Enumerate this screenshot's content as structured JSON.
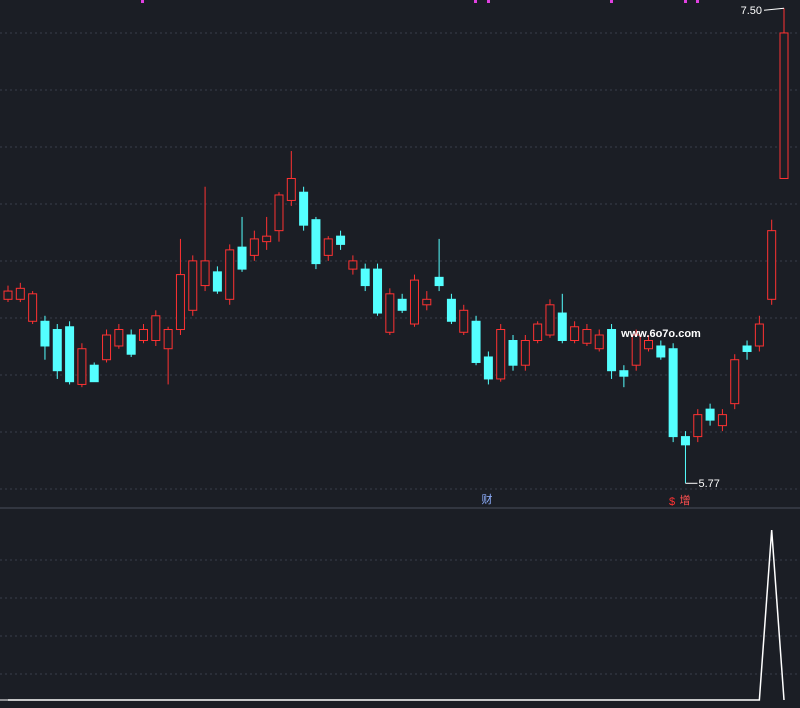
{
  "chart_data": {
    "type": "candlestick",
    "ylim": [
      5.68,
      7.53
    ],
    "open": [
      6.44,
      6.44,
      6.36,
      6.36,
      6.33,
      6.34,
      6.13,
      6.2,
      6.22,
      6.27,
      6.31,
      6.29,
      6.29,
      6.26,
      6.33,
      6.4,
      6.49,
      6.54,
      6.44,
      6.63,
      6.6,
      6.65,
      6.69,
      6.8,
      6.83,
      6.73,
      6.6,
      6.67,
      6.55,
      6.55,
      6.55,
      6.32,
      6.44,
      6.35,
      6.42,
      6.52,
      6.44,
      6.32,
      6.36,
      6.23,
      6.15,
      6.29,
      6.2,
      6.29,
      6.31,
      6.39,
      6.29,
      6.28,
      6.26,
      6.33,
      6.18,
      6.2,
      6.26,
      6.27,
      6.26,
      5.94,
      5.94,
      6.04,
      5.98,
      6.06,
      6.27,
      6.27,
      6.44,
      6.88
    ],
    "close": [
      6.47,
      6.48,
      6.46,
      6.27,
      6.18,
      6.14,
      6.26,
      6.14,
      6.31,
      6.33,
      6.24,
      6.33,
      6.38,
      6.33,
      6.53,
      6.58,
      6.58,
      6.47,
      6.62,
      6.55,
      6.66,
      6.67,
      6.82,
      6.88,
      6.71,
      6.57,
      6.66,
      6.64,
      6.58,
      6.49,
      6.39,
      6.46,
      6.4,
      6.51,
      6.44,
      6.49,
      6.36,
      6.4,
      6.21,
      6.15,
      6.33,
      6.2,
      6.29,
      6.35,
      6.42,
      6.29,
      6.34,
      6.33,
      6.31,
      6.18,
      6.16,
      6.31,
      6.29,
      6.23,
      5.94,
      5.91,
      6.02,
      6.0,
      6.02,
      6.22,
      6.25,
      6.35,
      6.69,
      7.41
    ],
    "high": [
      6.49,
      6.5,
      6.47,
      6.38,
      6.35,
      6.36,
      6.28,
      6.21,
      6.33,
      6.35,
      6.33,
      6.35,
      6.4,
      6.34,
      6.66,
      6.6,
      6.85,
      6.56,
      6.64,
      6.74,
      6.69,
      6.74,
      6.83,
      6.98,
      6.85,
      6.74,
      6.67,
      6.69,
      6.6,
      6.57,
      6.57,
      6.48,
      6.46,
      6.53,
      6.47,
      6.66,
      6.46,
      6.42,
      6.38,
      6.25,
      6.35,
      6.31,
      6.31,
      6.36,
      6.44,
      6.46,
      6.36,
      6.35,
      6.33,
      6.35,
      6.2,
      6.33,
      6.31,
      6.29,
      6.28,
      5.96,
      6.04,
      6.06,
      6.04,
      6.24,
      6.29,
      6.38,
      6.73,
      7.5
    ],
    "low": [
      6.43,
      6.43,
      6.35,
      6.22,
      6.15,
      6.13,
      6.12,
      6.14,
      6.21,
      6.26,
      6.23,
      6.28,
      6.27,
      6.13,
      6.31,
      6.38,
      6.47,
      6.46,
      6.42,
      6.54,
      6.58,
      6.62,
      6.65,
      6.78,
      6.69,
      6.55,
      6.58,
      6.62,
      6.53,
      6.47,
      6.38,
      6.31,
      6.39,
      6.34,
      6.4,
      6.47,
      6.35,
      6.31,
      6.2,
      6.13,
      6.14,
      6.18,
      6.18,
      6.28,
      6.3,
      6.28,
      6.28,
      6.27,
      6.25,
      6.15,
      6.12,
      6.18,
      6.25,
      6.22,
      5.92,
      5.77,
      5.92,
      5.98,
      5.96,
      6.04,
      6.22,
      6.25,
      6.42,
      6.88
    ],
    "up_color": "#ff3232",
    "down_color": "#54ffff",
    "annotations": [
      {
        "value": 7.5,
        "label": "7.50",
        "index": 63
      },
      {
        "value": 5.77,
        "label": "5.77",
        "index": 55
      }
    ],
    "event_labels": [
      "财",
      "$",
      "增"
    ],
    "watermark": "www.6o7o.com",
    "indicator": {
      "color": "#ffffff",
      "values": [
        0,
        0,
        0,
        0,
        0,
        0,
        0,
        0,
        0,
        0,
        0,
        0,
        0,
        0,
        0,
        0,
        0,
        0,
        0,
        0,
        0,
        0,
        0,
        0,
        0,
        0,
        0,
        0,
        0,
        0,
        0,
        0,
        0,
        0,
        0,
        0,
        0,
        0,
        0,
        0,
        0,
        0,
        0,
        0,
        0,
        0,
        0,
        0,
        0,
        0,
        0,
        0,
        0,
        0,
        0,
        0,
        0,
        0,
        0,
        0,
        0,
        0,
        1,
        0
      ]
    }
  }
}
